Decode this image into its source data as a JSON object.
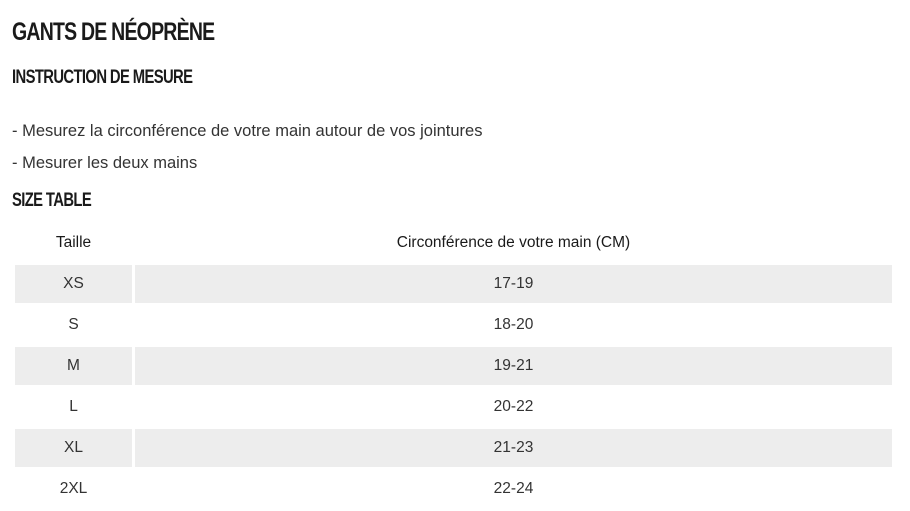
{
  "title": "GANTS DE NÉOPRÈNE",
  "measure_heading": "INSTRUCTION DE MESURE",
  "instructions": [
    "- Mesurez la circonférence de votre main autour de vos jointures",
    "- Mesurer les deux mains"
  ],
  "size_table": {
    "heading": "SIZE TABLE",
    "columns": [
      "Taille",
      "Circonférence de votre main (CM)"
    ],
    "rows": [
      [
        "XS",
        "17-19"
      ],
      [
        "S",
        "18-20"
      ],
      [
        "M",
        "19-21"
      ],
      [
        "L",
        "20-22"
      ],
      [
        "XL",
        "21-23"
      ],
      [
        "2XL",
        "22-24"
      ]
    ]
  },
  "colors": {
    "shaded_row": "#ededed",
    "text": "#222222"
  }
}
